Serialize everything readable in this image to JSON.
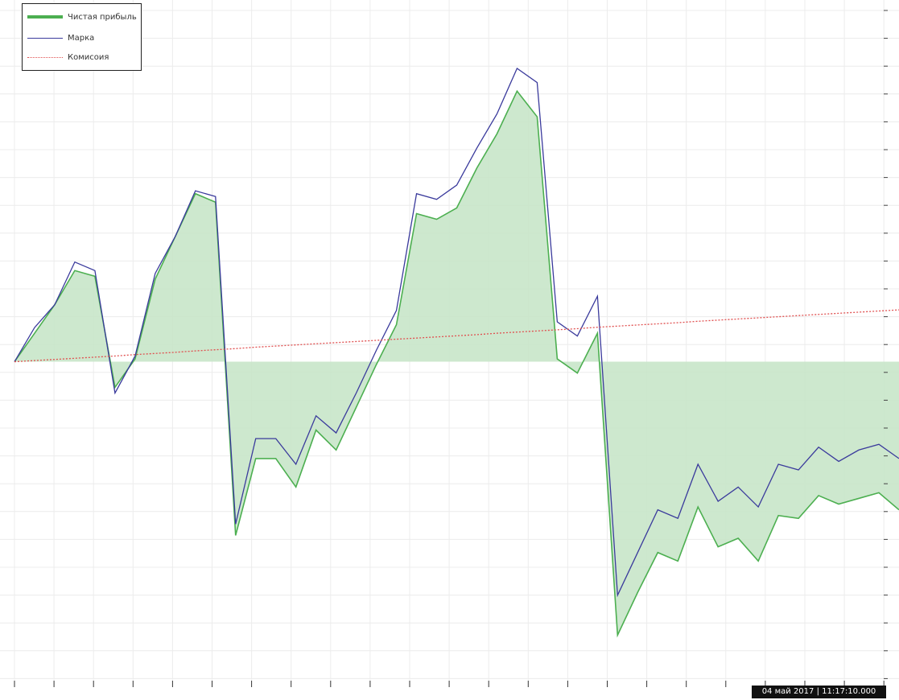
{
  "chart_data": {
    "type": "area",
    "title": "",
    "xlabel": "",
    "ylabel": "",
    "x": [
      0,
      1,
      2,
      3,
      4,
      5,
      6,
      7,
      8,
      9,
      10,
      11,
      12,
      13,
      14,
      15,
      16,
      17,
      18,
      19,
      20,
      21,
      22,
      23,
      24,
      25,
      26,
      27,
      28,
      29,
      30,
      31,
      32,
      33,
      34,
      35,
      36,
      37,
      38,
      39,
      40,
      41,
      42,
      43,
      44
    ],
    "xlim": [
      0,
      44
    ],
    "ylim": [
      -11.2,
      12.7
    ],
    "y_unit_note": "",
    "grid": true,
    "legend_position": "top-left",
    "series": [
      {
        "name": "Чистая прибыль",
        "style": "area",
        "color": "#4caf50",
        "fill": "#c8e6c9",
        "values": [
          0,
          1.0,
          2.0,
          3.2,
          3.0,
          -0.9,
          0.1,
          2.9,
          4.4,
          5.9,
          5.6,
          -6.1,
          -3.4,
          -3.4,
          -4.4,
          -2.4,
          -3.1,
          -1.6,
          -0.1,
          1.3,
          5.2,
          5.0,
          5.4,
          6.8,
          8.0,
          9.5,
          8.6,
          0.1,
          -0.4,
          1.0,
          -9.6,
          -8.1,
          -6.7,
          -7.0,
          -5.1,
          -6.5,
          -6.2,
          -7.0,
          -5.4,
          -5.5,
          -4.7,
          -5.0,
          -4.8,
          -4.6,
          -5.2
        ]
      },
      {
        "name": "Марка",
        "style": "line",
        "color": "#3a3a9c",
        "values": [
          0,
          1.2,
          2.0,
          3.5,
          3.2,
          -1.1,
          0.2,
          3.1,
          4.4,
          6.0,
          5.8,
          -5.7,
          -2.7,
          -2.7,
          -3.6,
          -1.9,
          -2.5,
          -1.1,
          0.4,
          1.8,
          5.9,
          5.7,
          6.2,
          7.5,
          8.7,
          10.3,
          9.8,
          1.4,
          0.9,
          2.3,
          -8.2,
          -6.7,
          -5.2,
          -5.5,
          -3.6,
          -4.9,
          -4.4,
          -5.1,
          -3.6,
          -3.8,
          -3.0,
          -3.5,
          -3.1,
          -2.9,
          -3.4
        ]
      },
      {
        "name": "Комисоия",
        "style": "dotted",
        "color": "#e05050",
        "values": [
          0,
          0.04,
          0.08,
          0.12,
          0.16,
          0.2,
          0.25,
          0.29,
          0.33,
          0.38,
          0.42,
          0.46,
          0.51,
          0.55,
          0.59,
          0.63,
          0.67,
          0.71,
          0.75,
          0.79,
          0.83,
          0.87,
          0.91,
          0.95,
          1.0,
          1.04,
          1.08,
          1.12,
          1.16,
          1.21,
          1.25,
          1.29,
          1.33,
          1.37,
          1.42,
          1.46,
          1.5,
          1.54,
          1.58,
          1.62,
          1.66,
          1.7,
          1.74,
          1.78,
          1.82
        ]
      }
    ],
    "annotations": [
      {
        "text": "04 май 2017  |  11:17:10.000",
        "anchor": "bottom-right"
      }
    ]
  }
}
